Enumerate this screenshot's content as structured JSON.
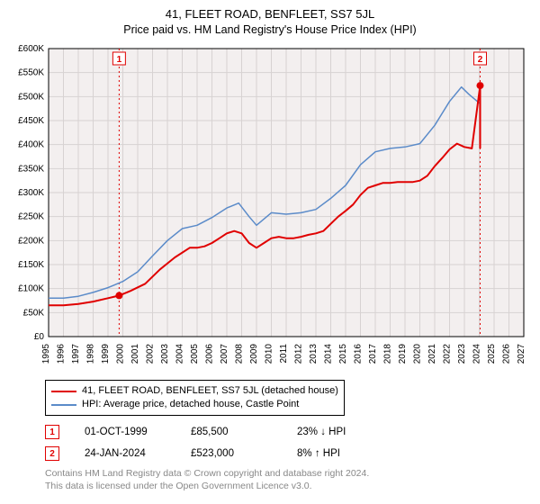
{
  "title": "41, FLEET ROAD, BENFLEET, SS7 5JL",
  "subtitle": "Price paid vs. HM Land Registry's House Price Index (HPI)",
  "chart": {
    "type": "line",
    "background": "#f3efef",
    "plot_background": "#f3efef",
    "grid_color": "#d7d2d2",
    "axis_color": "#000000",
    "tick_fontsize": 10,
    "x": {
      "min": 1995,
      "max": 2027,
      "tick_step": 1,
      "labels": [
        "1995",
        "1996",
        "1997",
        "1998",
        "1999",
        "2000",
        "2001",
        "2002",
        "2003",
        "2004",
        "2005",
        "2006",
        "2007",
        "2008",
        "2009",
        "2010",
        "2011",
        "2012",
        "2013",
        "2014",
        "2015",
        "2016",
        "2017",
        "2018",
        "2019",
        "2020",
        "2021",
        "2022",
        "2023",
        "2024",
        "2025",
        "2026",
        "2027"
      ]
    },
    "y": {
      "min": 0,
      "max": 600000,
      "tick_step": 50000,
      "labels": [
        "£0",
        "£50K",
        "£100K",
        "£150K",
        "£200K",
        "£250K",
        "£300K",
        "£350K",
        "£400K",
        "£450K",
        "£500K",
        "£550K",
        "£600K"
      ]
    },
    "series": [
      {
        "name": "property",
        "label": "41, FLEET ROAD, BENFLEET, SS7 5JL (detached house)",
        "color": "#e00000",
        "width": 2,
        "points": [
          [
            1995.0,
            65000
          ],
          [
            1996.0,
            65000
          ],
          [
            1997.0,
            68000
          ],
          [
            1998.0,
            73000
          ],
          [
            1999.0,
            80000
          ],
          [
            1999.75,
            85500
          ],
          [
            2000.5,
            95000
          ],
          [
            2001.5,
            110000
          ],
          [
            2002.5,
            140000
          ],
          [
            2003.5,
            165000
          ],
          [
            2004.5,
            185000
          ],
          [
            2005.0,
            185000
          ],
          [
            2005.5,
            188000
          ],
          [
            2006.0,
            195000
          ],
          [
            2006.5,
            205000
          ],
          [
            2007.0,
            215000
          ],
          [
            2007.5,
            220000
          ],
          [
            2008.0,
            215000
          ],
          [
            2008.5,
            195000
          ],
          [
            2009.0,
            185000
          ],
          [
            2009.5,
            195000
          ],
          [
            2010.0,
            205000
          ],
          [
            2010.5,
            208000
          ],
          [
            2011.0,
            205000
          ],
          [
            2011.5,
            205000
          ],
          [
            2012.0,
            208000
          ],
          [
            2012.5,
            212000
          ],
          [
            2013.0,
            215000
          ],
          [
            2013.5,
            220000
          ],
          [
            2014.0,
            235000
          ],
          [
            2014.5,
            250000
          ],
          [
            2015.0,
            262000
          ],
          [
            2015.5,
            275000
          ],
          [
            2016.0,
            295000
          ],
          [
            2016.5,
            310000
          ],
          [
            2017.0,
            315000
          ],
          [
            2017.5,
            320000
          ],
          [
            2018.0,
            320000
          ],
          [
            2018.5,
            322000
          ],
          [
            2019.0,
            322000
          ],
          [
            2019.5,
            322000
          ],
          [
            2020.0,
            325000
          ],
          [
            2020.5,
            335000
          ],
          [
            2021.0,
            355000
          ],
          [
            2021.5,
            372000
          ],
          [
            2022.0,
            390000
          ],
          [
            2022.5,
            402000
          ],
          [
            2023.0,
            395000
          ],
          [
            2023.5,
            392000
          ],
          [
            2024.06,
            523000
          ],
          [
            2024.06,
            392000
          ]
        ]
      },
      {
        "name": "hpi",
        "label": "HPI: Average price, detached house, Castle Point",
        "color": "#5b8bc9",
        "width": 1.5,
        "points": [
          [
            1995.0,
            80000
          ],
          [
            1996.0,
            80000
          ],
          [
            1997.0,
            84000
          ],
          [
            1998.0,
            92000
          ],
          [
            1999.0,
            102000
          ],
          [
            2000.0,
            115000
          ],
          [
            2001.0,
            135000
          ],
          [
            2002.0,
            168000
          ],
          [
            2003.0,
            200000
          ],
          [
            2004.0,
            225000
          ],
          [
            2005.0,
            232000
          ],
          [
            2006.0,
            248000
          ],
          [
            2007.0,
            268000
          ],
          [
            2007.8,
            278000
          ],
          [
            2008.5,
            250000
          ],
          [
            2009.0,
            232000
          ],
          [
            2009.5,
            245000
          ],
          [
            2010.0,
            258000
          ],
          [
            2011.0,
            255000
          ],
          [
            2012.0,
            258000
          ],
          [
            2013.0,
            265000
          ],
          [
            2014.0,
            288000
          ],
          [
            2015.0,
            315000
          ],
          [
            2016.0,
            358000
          ],
          [
            2017.0,
            385000
          ],
          [
            2018.0,
            392000
          ],
          [
            2019.0,
            395000
          ],
          [
            2020.0,
            402000
          ],
          [
            2021.0,
            440000
          ],
          [
            2022.0,
            490000
          ],
          [
            2022.8,
            520000
          ],
          [
            2023.3,
            505000
          ],
          [
            2024.06,
            485000
          ]
        ]
      }
    ],
    "markers": [
      {
        "idx": "1",
        "color": "#e00000",
        "x": 1999.75,
        "y": 85500
      },
      {
        "idx": "2",
        "color": "#e00000",
        "x": 2024.06,
        "y": 523000
      }
    ]
  },
  "legend": [
    {
      "color": "#e00000",
      "label": "41, FLEET ROAD, BENFLEET, SS7 5JL (detached house)"
    },
    {
      "color": "#5b8bc9",
      "label": "HPI: Average price, detached house, Castle Point"
    }
  ],
  "marker_rows": [
    {
      "idx": "1",
      "color": "#e00000",
      "date": "01-OCT-1999",
      "price": "£85,500",
      "delta": "23% ↓ HPI"
    },
    {
      "idx": "2",
      "color": "#e00000",
      "date": "24-JAN-2024",
      "price": "£523,000",
      "delta": "8% ↑ HPI"
    }
  ],
  "footer_line1": "Contains HM Land Registry data © Crown copyright and database right 2024.",
  "footer_line2": "This data is licensed under the Open Government Licence v3.0.",
  "footer_color": "#888888"
}
